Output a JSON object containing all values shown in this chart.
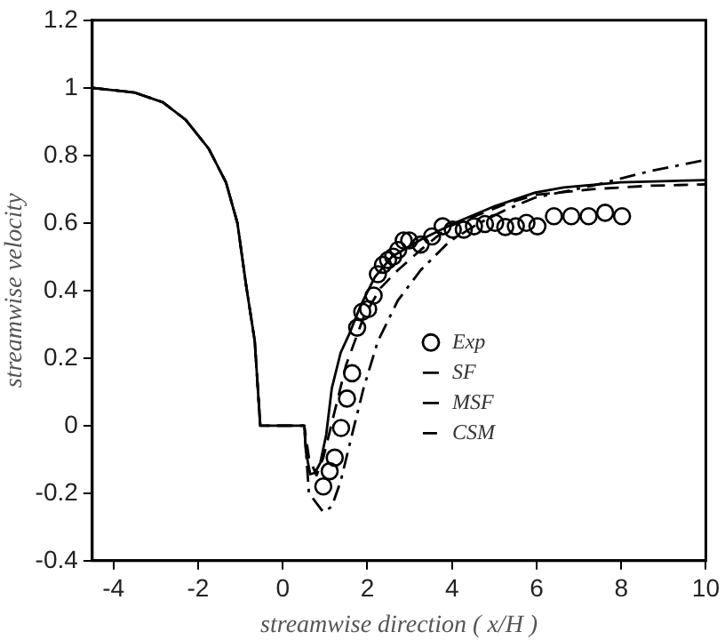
{
  "chart_data": {
    "type": "line",
    "xlabel": "streamwise direction ( x/H )",
    "ylabel": "streamwise velocity",
    "xlim": [
      -4.5,
      10
    ],
    "xticks": [
      -4,
      -2,
      0,
      2,
      4,
      6,
      8,
      10
    ],
    "ylim": [
      -0.4,
      1.2
    ],
    "yticks": [
      -0.4,
      -0.2,
      0,
      0.2,
      0.4,
      0.6,
      0.8,
      1,
      1.2
    ],
    "grid": false,
    "legend": "right",
    "series": [
      {
        "name": "Exp",
        "type": "scatter",
        "marker": "circle",
        "color": "#000000",
        "x": [
          0.96,
          1.11,
          1.23,
          1.38,
          1.52,
          1.64,
          1.76,
          1.88,
          2.02,
          2.15,
          2.25,
          2.37,
          2.49,
          2.61,
          2.73,
          2.86,
          2.99,
          3.26,
          3.53,
          3.78,
          4.02,
          4.28,
          4.52,
          4.78,
          5.02,
          5.26,
          5.51,
          5.76,
          6.02,
          6.41,
          6.82,
          7.23,
          7.62,
          8.02
        ],
        "values": [
          -0.18,
          -0.135,
          -0.095,
          -0.007,
          0.08,
          0.155,
          0.29,
          0.337,
          0.345,
          0.385,
          0.448,
          0.476,
          0.49,
          0.5,
          0.52,
          0.548,
          0.548,
          0.536,
          0.56,
          0.59,
          0.58,
          0.58,
          0.59,
          0.597,
          0.6,
          0.588,
          0.59,
          0.6,
          0.59,
          0.62,
          0.62,
          0.62,
          0.63,
          0.62
        ]
      },
      {
        "name": "SF",
        "line_style": "dashdot",
        "marker": "none",
        "color": "#000000",
        "x": [
          -4.5,
          -3.5,
          -2.83,
          -2.29,
          -1.75,
          -1.34,
          -1.07,
          -0.87,
          -0.66,
          -0.53,
          0.51,
          0.62,
          0.96,
          1.16,
          1.37,
          1.64,
          1.91,
          2.25,
          2.72,
          3.26,
          3.94,
          4.61,
          5.29,
          5.97,
          7.32,
          8.67,
          10
        ],
        "values": [
          1,
          0.986,
          0.957,
          0.905,
          0.82,
          0.72,
          0.6,
          0.42,
          0.25,
          0,
          0,
          -0.2,
          -0.256,
          -0.24,
          -0.165,
          -0.026,
          0.11,
          0.25,
          0.37,
          0.46,
          0.545,
          0.597,
          0.64,
          0.675,
          0.71,
          0.753,
          0.787
        ]
      },
      {
        "name": "MSF",
        "line_style": "solid",
        "marker": "none",
        "color": "#000000",
        "x": [
          -4.5,
          -3.5,
          -2.83,
          -2.29,
          -1.75,
          -1.34,
          -1.07,
          -0.87,
          -0.66,
          -0.53,
          0.51,
          0.55,
          0.65,
          0.76,
          0.89,
          1.03,
          1.16,
          1.37,
          1.57,
          1.84,
          2.18,
          2.58,
          3.26,
          4.07,
          5.02,
          5.97,
          6.64,
          7.99,
          10
        ],
        "values": [
          1,
          0.986,
          0.957,
          0.905,
          0.82,
          0.72,
          0.6,
          0.42,
          0.25,
          0,
          0,
          -0.078,
          -0.144,
          -0.14,
          -0.11,
          -0.026,
          0.11,
          0.216,
          0.27,
          0.355,
          0.44,
          0.5,
          0.55,
          0.6,
          0.65,
          0.69,
          0.705,
          0.72,
          0.727
        ]
      },
      {
        "name": "CSM",
        "line_style": "dashed",
        "marker": "none",
        "color": "#000000",
        "x": [
          -4.5,
          -3.5,
          -2.83,
          -2.29,
          -1.75,
          -1.34,
          -1.07,
          -0.87,
          -0.66,
          -0.53,
          0.51,
          0.62,
          0.8,
          0.96,
          1.23,
          1.5,
          1.91,
          2.31,
          2.72,
          3.26,
          3.94,
          4.61,
          5.29,
          5.97,
          7.32,
          8.67,
          10
        ],
        "values": [
          1,
          0.986,
          0.957,
          0.905,
          0.82,
          0.72,
          0.6,
          0.42,
          0.25,
          0,
          0,
          -0.095,
          -0.147,
          -0.095,
          0.043,
          0.18,
          0.32,
          0.407,
          0.46,
          0.52,
          0.59,
          0.623,
          0.657,
          0.683,
          0.7,
          0.71,
          0.714
        ]
      }
    ]
  }
}
